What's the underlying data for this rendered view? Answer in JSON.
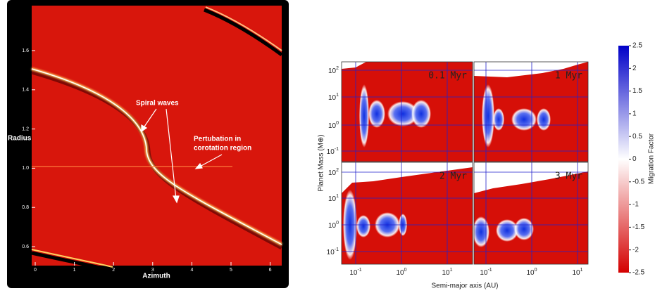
{
  "left_panel": {
    "xlabel": "Azimuth",
    "ylabel": "Radius",
    "xticks": [
      "0",
      "1",
      "2",
      "3",
      "4",
      "5",
      "6"
    ],
    "yticks": [
      "0.6",
      "0.8",
      "1.0",
      "1.2",
      "1.4",
      "1.6"
    ],
    "annotation_spiral": "Spiral waves",
    "annotation_corotation": [
      "Pertubation in",
      "corotation region"
    ]
  },
  "right_panel": {
    "xlabel": "Semi-major axis (AU)",
    "ylabel": "Planet Mass (M⊕)",
    "panel_labels": [
      "0.1 Myr",
      "1 Myr",
      "2 Myr",
      "3 Myr"
    ],
    "yticks": [
      {
        "base": "10",
        "exponent": "2"
      },
      {
        "base": "10",
        "exponent": "1"
      },
      {
        "base": "10",
        "exponent": "0"
      },
      {
        "base": "10",
        "exponent": "-1"
      }
    ],
    "xticks": [
      {
        "base": "10",
        "exponent": "-1"
      },
      {
        "base": "10",
        "exponent": "0"
      },
      {
        "base": "10",
        "exponent": "1"
      }
    ],
    "colorbar_label": "Migration Factor",
    "colorbar_ticks": [
      "2.5",
      "2",
      "1.5",
      "1",
      "0.5",
      "0",
      "-0.5",
      "-1",
      "-1.5",
      "-2",
      "-2.5"
    ]
  }
}
